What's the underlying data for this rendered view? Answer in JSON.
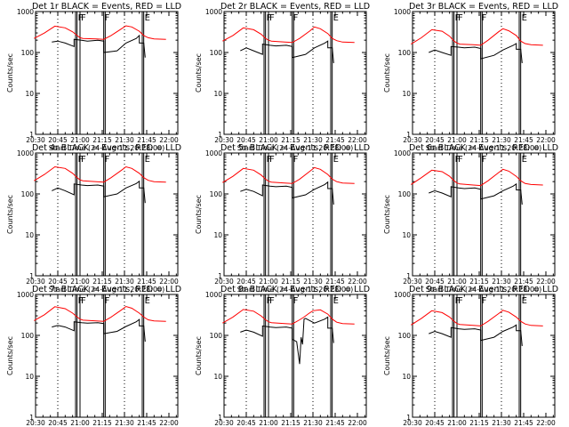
{
  "figure": {
    "xlabel": "Start Time (24-Aug-11 20:28:00)",
    "ylabel": "Counts/sec",
    "x_ticks": [
      "20:30",
      "20:45",
      "21:00",
      "21:15",
      "21:30",
      "21:45",
      "22:00"
    ],
    "y_ticks": [
      "1",
      "10",
      "100",
      "1000"
    ],
    "colors": {
      "events": "#000000",
      "lld": "#ff0000",
      "background": "#ffffff"
    }
  },
  "chart_data": [
    {
      "type": "line",
      "title": "Det 1r BLACK = Events, RED = LLD",
      "xlim": [
        "20:30",
        "22:06"
      ],
      "ylim": [
        1,
        1000
      ],
      "yscale": "log",
      "flags": [
        "F",
        "F",
        "F",
        "E"
      ],
      "series": [
        {
          "name": "LLD",
          "color": "#ff0000",
          "x": [
            "20:29",
            "20:36",
            "20:43",
            "20:50",
            "20:55",
            "20:58",
            "21:00",
            "21:02",
            "21:11",
            "21:16",
            "21:21",
            "21:28",
            "21:31",
            "21:35",
            "21:40",
            "21:43",
            "21:46",
            "21:50",
            "21:58"
          ],
          "values": [
            220,
            300,
            440,
            400,
            320,
            260,
            230,
            220,
            215,
            210,
            260,
            380,
            450,
            420,
            330,
            260,
            230,
            215,
            210
          ]
        },
        {
          "name": "Events",
          "color": "#000000",
          "x": [
            "20:41",
            "20:45",
            "20:50",
            "20:56",
            "20:56",
            "21:01",
            "21:05",
            "21:12",
            "21:16",
            "21:16",
            "21:25",
            "21:31",
            "21:38",
            "21:40",
            "21:40",
            "21:43",
            "21:44"
          ],
          "values": [
            180,
            190,
            170,
            140,
            210,
            200,
            190,
            200,
            190,
            100,
            110,
            170,
            220,
            260,
            170,
            170,
            75
          ]
        }
      ]
    },
    {
      "type": "line",
      "title": "Det 2r BLACK = Events, RED = LLD",
      "xlim": [
        "20:30",
        "22:06"
      ],
      "ylim": [
        1,
        1000
      ],
      "yscale": "log",
      "flags": [
        "F",
        "F",
        "F",
        "E"
      ],
      "series": [
        {
          "name": "LLD",
          "color": "#ff0000",
          "x": [
            "20:29",
            "20:36",
            "20:43",
            "20:50",
            "20:55",
            "20:58",
            "21:00",
            "21:02",
            "21:11",
            "21:16",
            "21:21",
            "21:28",
            "21:31",
            "21:35",
            "21:40",
            "21:43",
            "21:46",
            "21:50",
            "21:58"
          ],
          "values": [
            190,
            260,
            400,
            360,
            280,
            220,
            200,
            190,
            180,
            175,
            220,
            340,
            420,
            380,
            290,
            220,
            195,
            180,
            175
          ]
        },
        {
          "name": "Events",
          "color": "#000000",
          "x": [
            "20:41",
            "20:45",
            "20:50",
            "20:56",
            "20:56",
            "21:01",
            "21:05",
            "21:12",
            "21:16",
            "21:16",
            "21:25",
            "21:31",
            "21:38",
            "21:40",
            "21:40",
            "21:43",
            "21:44"
          ],
          "values": [
            110,
            130,
            110,
            90,
            160,
            150,
            145,
            150,
            140,
            75,
            90,
            130,
            170,
            190,
            130,
            130,
            55
          ]
        }
      ]
    },
    {
      "type": "line",
      "title": "Det 3r BLACK = Events, RED = LLD",
      "xlim": [
        "20:30",
        "22:06"
      ],
      "ylim": [
        1,
        1000
      ],
      "yscale": "log",
      "flags": [
        "F",
        "F",
        "F",
        "E"
      ],
      "series": [
        {
          "name": "LLD",
          "color": "#ff0000",
          "x": [
            "20:29",
            "20:36",
            "20:43",
            "20:50",
            "20:55",
            "20:58",
            "21:00",
            "21:02",
            "21:11",
            "21:16",
            "21:21",
            "21:28",
            "21:31",
            "21:35",
            "21:40",
            "21:43",
            "21:46",
            "21:50",
            "21:58"
          ],
          "values": [
            160,
            230,
            360,
            330,
            250,
            190,
            170,
            160,
            155,
            150,
            200,
            320,
            380,
            340,
            260,
            190,
            165,
            155,
            150
          ]
        },
        {
          "name": "Events",
          "color": "#000000",
          "x": [
            "20:41",
            "20:45",
            "20:50",
            "20:56",
            "20:56",
            "21:01",
            "21:05",
            "21:12",
            "21:16",
            "21:16",
            "21:25",
            "21:31",
            "21:38",
            "21:40",
            "21:40",
            "21:43",
            "21:44"
          ],
          "values": [
            100,
            115,
            100,
            85,
            140,
            135,
            130,
            135,
            125,
            70,
            85,
            115,
            150,
            165,
            120,
            120,
            55
          ]
        }
      ]
    },
    {
      "type": "line",
      "title": "Det 4r BLACK = Events, RED = LLD",
      "xlim": [
        "20:30",
        "22:06"
      ],
      "ylim": [
        1,
        1000
      ],
      "yscale": "log",
      "flags": [
        "F",
        "F",
        "F",
        "E"
      ],
      "series": [
        {
          "name": "LLD",
          "color": "#ff0000",
          "x": [
            "20:29",
            "20:36",
            "20:43",
            "20:50",
            "20:55",
            "20:58",
            "21:00",
            "21:02",
            "21:11",
            "21:16",
            "21:21",
            "21:28",
            "21:31",
            "21:35",
            "21:40",
            "21:43",
            "21:46",
            "21:50",
            "21:58"
          ],
          "values": [
            210,
            300,
            460,
            420,
            320,
            250,
            220,
            210,
            200,
            195,
            250,
            380,
            460,
            420,
            320,
            250,
            215,
            200,
            195
          ]
        },
        {
          "name": "Events",
          "color": "#000000",
          "x": [
            "20:41",
            "20:45",
            "20:50",
            "20:56",
            "20:56",
            "21:01",
            "21:05",
            "21:12",
            "21:16",
            "21:16",
            "21:25",
            "21:31",
            "21:38",
            "21:40",
            "21:40",
            "21:43",
            "21:44"
          ],
          "values": [
            120,
            140,
            120,
            95,
            175,
            165,
            160,
            165,
            155,
            85,
            100,
            140,
            180,
            205,
            140,
            140,
            60
          ]
        }
      ]
    },
    {
      "type": "line",
      "title": "Det 5r BLACK = Events, RED = LLD",
      "xlim": [
        "20:30",
        "22:06"
      ],
      "ylim": [
        1,
        1000
      ],
      "yscale": "log",
      "flags": [
        "F",
        "F",
        "F",
        "E"
      ],
      "series": [
        {
          "name": "LLD",
          "color": "#ff0000",
          "x": [
            "20:29",
            "20:36",
            "20:43",
            "20:50",
            "20:55",
            "20:58",
            "21:00",
            "21:02",
            "21:11",
            "21:16",
            "21:21",
            "21:28",
            "21:31",
            "21:35",
            "21:40",
            "21:43",
            "21:46",
            "21:50",
            "21:58"
          ],
          "values": [
            190,
            270,
            420,
            380,
            290,
            230,
            205,
            195,
            185,
            180,
            230,
            360,
            440,
            400,
            300,
            230,
            200,
            185,
            180
          ]
        },
        {
          "name": "Events",
          "color": "#000000",
          "x": [
            "20:41",
            "20:45",
            "20:50",
            "20:56",
            "20:56",
            "21:01",
            "21:05",
            "21:12",
            "21:16",
            "21:16",
            "21:25",
            "21:31",
            "21:38",
            "21:40",
            "21:40",
            "21:43",
            "21:44"
          ],
          "values": [
            115,
            130,
            115,
            90,
            165,
            155,
            150,
            155,
            145,
            80,
            95,
            130,
            170,
            195,
            135,
            135,
            55
          ]
        }
      ]
    },
    {
      "type": "line",
      "title": "Det 6r BLACK = Events, RED = LLD",
      "xlim": [
        "20:30",
        "22:06"
      ],
      "ylim": [
        1,
        1000
      ],
      "yscale": "log",
      "flags": [
        "F",
        "F",
        "F",
        "E"
      ],
      "series": [
        {
          "name": "LLD",
          "color": "#ff0000",
          "x": [
            "20:29",
            "20:36",
            "20:43",
            "20:50",
            "20:55",
            "20:58",
            "21:00",
            "21:02",
            "21:11",
            "21:16",
            "21:21",
            "21:28",
            "21:31",
            "21:35",
            "21:40",
            "21:43",
            "21:46",
            "21:50",
            "21:58"
          ],
          "values": [
            170,
            250,
            380,
            350,
            270,
            210,
            185,
            175,
            165,
            160,
            210,
            330,
            400,
            360,
            270,
            210,
            180,
            170,
            165
          ]
        },
        {
          "name": "Events",
          "color": "#000000",
          "x": [
            "20:41",
            "20:45",
            "20:50",
            "20:56",
            "20:56",
            "21:01",
            "21:05",
            "21:12",
            "21:16",
            "21:16",
            "21:25",
            "21:31",
            "21:38",
            "21:40",
            "21:40",
            "21:43",
            "21:44"
          ],
          "values": [
            105,
            120,
            105,
            85,
            150,
            140,
            135,
            140,
            130,
            75,
            90,
            120,
            155,
            175,
            125,
            125,
            55
          ]
        }
      ]
    },
    {
      "type": "line",
      "title": "Det 7r BLACK = Events, RED = LLD",
      "xlim": [
        "20:30",
        "22:06"
      ],
      "ylim": [
        1,
        1000
      ],
      "yscale": "log",
      "flags": [
        "F",
        "F",
        "F",
        "E"
      ],
      "series": [
        {
          "name": "LLD",
          "color": "#ff0000",
          "x": [
            "20:29",
            "20:36",
            "20:43",
            "20:50",
            "20:55",
            "20:58",
            "21:00",
            "21:02",
            "21:11",
            "21:16",
            "21:21",
            "21:28",
            "21:31",
            "21:35",
            "21:40",
            "21:43",
            "21:46",
            "21:50",
            "21:58"
          ],
          "values": [
            230,
            320,
            500,
            450,
            350,
            280,
            250,
            235,
            225,
            220,
            280,
            420,
            510,
            460,
            350,
            280,
            240,
            225,
            220
          ]
        },
        {
          "name": "Events",
          "color": "#000000",
          "x": [
            "20:41",
            "20:45",
            "20:50",
            "20:56",
            "20:56",
            "21:01",
            "21:05",
            "21:12",
            "21:16",
            "21:16",
            "21:25",
            "21:31",
            "21:38",
            "21:40",
            "21:40",
            "21:43",
            "21:44"
          ],
          "values": [
            160,
            175,
            160,
            130,
            215,
            205,
            200,
            205,
            195,
            110,
            125,
            165,
            215,
            245,
            170,
            170,
            70
          ]
        }
      ]
    },
    {
      "type": "line",
      "title": "Det 8r BLACK = Events, RED = LLD",
      "xlim": [
        "20:30",
        "22:06"
      ],
      "ylim": [
        1,
        1000
      ],
      "yscale": "log",
      "flags": [
        "F",
        "F",
        "F",
        "E"
      ],
      "series": [
        {
          "name": "LLD",
          "color": "#ff0000",
          "x": [
            "20:29",
            "20:36",
            "20:43",
            "20:50",
            "20:55",
            "20:58",
            "21:00",
            "21:02",
            "21:11",
            "21:16",
            "21:21",
            "21:24",
            "21:27",
            "21:30",
            "21:35",
            "21:40",
            "21:43",
            "21:46",
            "21:50",
            "21:58"
          ],
          "values": [
            200,
            280,
            430,
            390,
            300,
            240,
            215,
            205,
            195,
            190,
            240,
            280,
            340,
            400,
            420,
            330,
            250,
            210,
            195,
            190
          ]
        },
        {
          "name": "Events",
          "color": "#000000",
          "x": [
            "20:41",
            "20:45",
            "20:50",
            "20:56",
            "20:56",
            "21:01",
            "21:05",
            "21:12",
            "21:16",
            "21:16",
            "21:19",
            "21:21",
            "21:22",
            "21:23",
            "21:24",
            "21:25",
            "21:31",
            "21:38",
            "21:40",
            "21:40",
            "21:43",
            "21:44"
          ],
          "values": [
            120,
            135,
            120,
            95,
            170,
            160,
            155,
            160,
            150,
            80,
            70,
            20,
            90,
            60,
            250,
            260,
            200,
            250,
            280,
            150,
            150,
            65
          ]
        }
      ]
    },
    {
      "type": "line",
      "title": "Det 9r BLACK = Events, RED = LLD",
      "xlim": [
        "20:30",
        "22:06"
      ],
      "ylim": [
        1,
        1000
      ],
      "yscale": "log",
      "flags": [
        "F",
        "F",
        "F",
        "E"
      ],
      "series": [
        {
          "name": "LLD",
          "color": "#ff0000",
          "x": [
            "20:29",
            "20:36",
            "20:43",
            "20:50",
            "20:55",
            "20:58",
            "21:00",
            "21:02",
            "21:11",
            "21:16",
            "21:21",
            "21:28",
            "21:31",
            "21:35",
            "21:40",
            "21:43",
            "21:46",
            "21:50",
            "21:58"
          ],
          "values": [
            180,
            260,
            400,
            360,
            280,
            220,
            195,
            185,
            175,
            170,
            220,
            340,
            410,
            370,
            280,
            220,
            190,
            175,
            170
          ]
        },
        {
          "name": "Events",
          "color": "#000000",
          "x": [
            "20:41",
            "20:45",
            "20:50",
            "20:56",
            "20:56",
            "21:01",
            "21:05",
            "21:12",
            "21:16",
            "21:16",
            "21:25",
            "21:31",
            "21:38",
            "21:40",
            "21:40",
            "21:43",
            "21:44"
          ],
          "values": [
            110,
            125,
            110,
            90,
            155,
            145,
            140,
            145,
            135,
            75,
            90,
            125,
            160,
            180,
            130,
            130,
            55
          ]
        }
      ]
    }
  ]
}
